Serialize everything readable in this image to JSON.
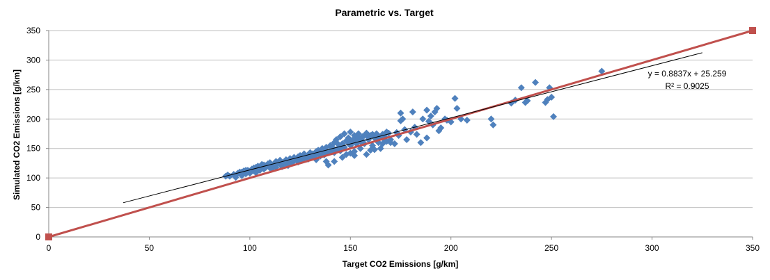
{
  "chart_data": {
    "type": "scatter",
    "title": "Parametric vs. Target",
    "xlabel": "Target CO2 Emissions [g/km]",
    "ylabel": "Simulated CO2 Emissions [g/km]",
    "xlim": [
      0,
      350
    ],
    "ylim": [
      0,
      350
    ],
    "x_ticks": [
      0,
      50,
      100,
      150,
      200,
      250,
      300,
      350
    ],
    "y_ticks": [
      0,
      50,
      100,
      150,
      200,
      250,
      300,
      350
    ],
    "grid": "horizontal",
    "marker_color": "#4f81bd",
    "reference_line_color": "#c0504d",
    "trendline_color": "#000000",
    "series": [
      {
        "marker": "diamond",
        "points": [
          [
            88,
            103
          ],
          [
            89,
            105
          ],
          [
            92,
            106
          ],
          [
            94,
            108
          ],
          [
            95,
            110
          ],
          [
            96,
            104
          ],
          [
            97,
            112
          ],
          [
            98,
            107
          ],
          [
            99,
            113
          ],
          [
            100,
            110
          ],
          [
            101,
            115
          ],
          [
            102,
            112
          ],
          [
            103,
            118
          ],
          [
            104,
            114
          ],
          [
            104,
            120
          ],
          [
            105,
            116
          ],
          [
            106,
            119
          ],
          [
            107,
            122
          ],
          [
            107,
            115
          ],
          [
            108,
            121
          ],
          [
            109,
            124
          ],
          [
            110,
            117
          ],
          [
            110,
            126
          ],
          [
            111,
            120
          ],
          [
            112,
            123
          ],
          [
            113,
            128
          ],
          [
            113,
            118
          ],
          [
            114,
            125
          ],
          [
            115,
            130
          ],
          [
            116,
            122
          ],
          [
            117,
            127
          ],
          [
            118,
            131
          ],
          [
            118,
            124
          ],
          [
            119,
            121
          ],
          [
            120,
            133
          ],
          [
            121,
            126
          ],
          [
            122,
            129
          ],
          [
            122,
            135
          ],
          [
            123,
            132
          ],
          [
            124,
            127
          ],
          [
            125,
            138
          ],
          [
            126,
            134
          ],
          [
            126,
            130
          ],
          [
            127,
            141
          ],
          [
            128,
            136
          ],
          [
            129,
            132
          ],
          [
            130,
            143
          ],
          [
            130,
            138
          ],
          [
            131,
            135
          ],
          [
            132,
            140
          ],
          [
            133,
            145
          ],
          [
            133,
            131
          ],
          [
            134,
            147
          ],
          [
            135,
            137
          ],
          [
            136,
            150
          ],
          [
            136,
            142
          ],
          [
            137,
            139
          ],
          [
            138,
            152
          ],
          [
            138,
            128
          ],
          [
            139,
            122
          ],
          [
            140,
            146
          ],
          [
            140,
            155
          ],
          [
            141,
            149
          ],
          [
            142,
            160
          ],
          [
            142,
            143
          ],
          [
            143,
            165
          ],
          [
            144,
            150
          ],
          [
            145,
            170
          ],
          [
            145,
            146
          ],
          [
            146,
            158
          ],
          [
            147,
            175
          ],
          [
            147,
            152
          ],
          [
            148,
            163
          ],
          [
            148,
            140
          ],
          [
            149,
            168
          ],
          [
            150,
            155
          ],
          [
            150,
            178
          ],
          [
            151,
            160
          ],
          [
            152,
            172
          ],
          [
            152,
            145
          ],
          [
            153,
            165
          ],
          [
            154,
            175
          ],
          [
            155,
            150
          ],
          [
            155,
            162
          ],
          [
            156,
            170
          ],
          [
            157,
            158
          ],
          [
            158,
            176
          ],
          [
            158,
            140
          ],
          [
            159,
            165
          ],
          [
            160,
            172
          ],
          [
            161,
            155
          ],
          [
            162,
            168
          ],
          [
            162,
            148
          ],
          [
            163,
            175
          ],
          [
            164,
            160
          ],
          [
            165,
            170
          ],
          [
            166,
            158
          ],
          [
            167,
            165
          ],
          [
            168,
            178
          ],
          [
            168,
            162
          ],
          [
            170,
            165
          ],
          [
            172,
            158
          ],
          [
            174,
            172
          ],
          [
            175,
            197
          ],
          [
            175,
            210
          ],
          [
            176,
            200
          ],
          [
            177,
            182
          ],
          [
            178,
            165
          ],
          [
            180,
            178
          ],
          [
            181,
            212
          ],
          [
            182,
            186
          ],
          [
            183,
            174
          ],
          [
            185,
            160
          ],
          [
            186,
            200
          ],
          [
            188,
            215
          ],
          [
            188,
            168
          ],
          [
            189,
            196
          ],
          [
            190,
            205
          ],
          [
            191,
            190
          ],
          [
            192,
            212
          ],
          [
            193,
            218
          ],
          [
            194,
            180
          ],
          [
            195,
            185
          ],
          [
            197,
            200
          ],
          [
            198,
            198
          ],
          [
            200,
            195
          ],
          [
            202,
            235
          ],
          [
            203,
            218
          ],
          [
            205,
            200
          ],
          [
            208,
            198
          ],
          [
            220,
            200
          ],
          [
            221,
            190
          ],
          [
            230,
            227
          ],
          [
            232,
            232
          ],
          [
            235,
            253
          ],
          [
            237,
            228
          ],
          [
            238,
            231
          ],
          [
            242,
            262
          ],
          [
            247,
            228
          ],
          [
            248,
            233
          ],
          [
            249,
            253
          ],
          [
            250,
            237
          ],
          [
            251,
            204
          ],
          [
            275,
            281
          ],
          [
            90,
            103
          ],
          [
            93,
            101
          ],
          [
            96,
            110
          ],
          [
            98,
            113
          ],
          [
            100,
            108
          ],
          [
            102,
            117
          ],
          [
            103,
            109
          ],
          [
            105,
            113
          ],
          [
            106,
            123
          ],
          [
            108,
            118
          ],
          [
            110,
            121
          ],
          [
            111,
            116
          ],
          [
            113,
            126
          ],
          [
            115,
            124
          ],
          [
            116,
            119
          ],
          [
            118,
            128
          ],
          [
            120,
            125
          ],
          [
            122,
            131
          ],
          [
            124,
            136
          ],
          [
            125,
            130
          ],
          [
            127,
            133
          ],
          [
            129,
            138
          ],
          [
            131,
            141
          ],
          [
            132,
            137
          ],
          [
            134,
            140
          ],
          [
            135,
            145
          ],
          [
            137,
            147
          ],
          [
            139,
            143
          ],
          [
            141,
            152
          ],
          [
            143,
            148
          ],
          [
            144,
            157
          ],
          [
            146,
            153
          ],
          [
            149,
            160
          ],
          [
            151,
            164
          ],
          [
            153,
            158
          ],
          [
            154,
            168
          ],
          [
            156,
            163
          ],
          [
            157,
            172
          ],
          [
            159,
            169
          ],
          [
            161,
            174
          ],
          [
            163,
            166
          ],
          [
            164,
            171
          ],
          [
            166,
            174
          ],
          [
            167,
            170
          ],
          [
            169,
            176
          ],
          [
            152,
            138
          ],
          [
            150,
            142
          ],
          [
            160,
            147
          ],
          [
            165,
            150
          ],
          [
            142,
            128
          ],
          [
            146,
            135
          ],
          [
            170,
            160
          ],
          [
            173,
            177
          ]
        ]
      }
    ],
    "reference_line": {
      "points": [
        [
          0,
          0
        ],
        [
          350,
          350
        ]
      ]
    },
    "trendline": {
      "slope": 0.8837,
      "intercept": 25.259,
      "x_range": [
        37,
        325
      ]
    },
    "equation_label": "y = 0.8837x + 25.259",
    "r2_label": "R² = 0.9025"
  }
}
